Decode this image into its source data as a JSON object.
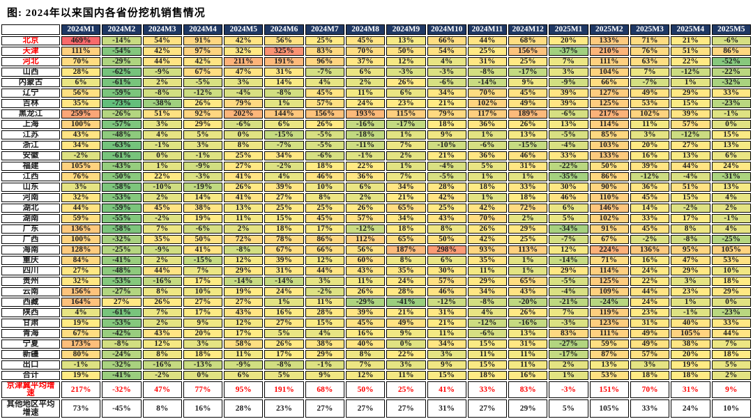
{
  "title": "图: 2024年以来国内各省份挖机销售情况",
  "chart_data": {
    "type": "heatmap",
    "unit": "%",
    "columns": [
      "2024M1",
      "2024M2",
      "2024M3",
      "2024M4",
      "2024M5",
      "2024M6",
      "2024M7",
      "2024M8",
      "2024M9",
      "2024M10",
      "2024M11",
      "2024M12",
      "2025M1",
      "2025M2",
      "2025M3",
      "2025M4",
      "2025M5"
    ],
    "header": {
      "bg": "#1F3864",
      "text": "#FFFFFF"
    },
    "border_color": "#000000",
    "color_scale": {
      "min": -73,
      "mid": 18,
      "max": 469,
      "min_color": "#63BE7B",
      "mid_color": "#FFEB84",
      "max_color": "#F8696B"
    },
    "rows": [
      {
        "label": "北京",
        "label_style": "red",
        "values": [
          469,
          -14,
          54,
          91,
          42,
          56,
          25,
          45,
          13,
          66,
          44,
          68,
          20,
          133,
          71,
          21,
          -6
        ]
      },
      {
        "label": "天津",
        "label_style": "red",
        "values": [
          111,
          -54,
          42,
          97,
          32,
          325,
          83,
          70,
          50,
          54,
          25,
          156,
          -37,
          210,
          76,
          51,
          86
        ]
      },
      {
        "label": "河北",
        "label_style": "red",
        "values": [
          70,
          -29,
          44,
          42,
          211,
          191,
          96,
          37,
          12,
          4,
          31,
          25,
          7,
          111,
          63,
          22,
          -52
        ]
      },
      {
        "label": "山西",
        "values": [
          28,
          -62,
          -9,
          67,
          47,
          31,
          -7,
          6,
          -3,
          -3,
          -8,
          -17,
          3,
          104,
          7,
          -12,
          -22
        ]
      },
      {
        "label": "内蒙古",
        "values": [
          6,
          -61,
          2,
          -5,
          3,
          14,
          4,
          2,
          26,
          -6,
          -14,
          9,
          -9,
          66,
          -7,
          1,
          -32
        ]
      },
      {
        "label": "辽宁",
        "values": [
          56,
          -59,
          -8,
          -12,
          -4,
          -8,
          45,
          11,
          6,
          34,
          70,
          45,
          39,
          127,
          49,
          29,
          33
        ]
      },
      {
        "label": "吉林",
        "values": [
          35,
          -73,
          -38,
          26,
          79,
          1,
          57,
          24,
          23,
          21,
          102,
          49,
          39,
          125,
          53,
          15,
          -23
        ]
      },
      {
        "label": "黑龙江",
        "values": [
          259,
          -26,
          51,
          92,
          202,
          144,
          156,
          193,
          115,
          79,
          117,
          189,
          -6,
          217,
          102,
          39,
          -1
        ]
      },
      {
        "label": "上海",
        "values": [
          100,
          -57,
          3,
          29,
          -6,
          6,
          26,
          -16,
          -17,
          18,
          36,
          26,
          13,
          114,
          11,
          57,
          0
        ]
      },
      {
        "label": "江苏",
        "values": [
          43,
          -48,
          4,
          5,
          0,
          -15,
          -5,
          -18,
          1,
          9,
          1,
          13,
          -5,
          85,
          3,
          -12,
          15
        ]
      },
      {
        "label": "浙江",
        "values": [
          34,
          -63,
          -1,
          3,
          8,
          -7,
          -5,
          -11,
          7,
          -10,
          -6,
          -15,
          -4,
          103,
          20,
          27,
          13
        ]
      },
      {
        "label": "安徽",
        "values": [
          -2,
          -61,
          0,
          -1,
          25,
          34,
          -6,
          -1,
          2,
          21,
          36,
          46,
          33,
          133,
          16,
          13,
          6
        ]
      },
      {
        "label": "福建",
        "values": [
          105,
          -43,
          1,
          -9,
          27,
          -2,
          18,
          22,
          1,
          -4,
          5,
          31,
          -22,
          50,
          39,
          44,
          24
        ]
      },
      {
        "label": "江西",
        "values": [
          76,
          -50,
          22,
          -3,
          41,
          4,
          46,
          36,
          7,
          -5,
          1,
          1,
          -35,
          86,
          -12,
          -4,
          -31
        ]
      },
      {
        "label": "山东",
        "values": [
          3,
          -58,
          -10,
          -19,
          26,
          39,
          10,
          6,
          34,
          28,
          18,
          33,
          30,
          90,
          36,
          51,
          13
        ]
      },
      {
        "label": "河南",
        "values": [
          32,
          -53,
          2,
          14,
          41,
          27,
          8,
          2,
          21,
          42,
          1,
          18,
          46,
          110,
          45,
          15,
          4
        ]
      },
      {
        "label": "湖北",
        "values": [
          44,
          -59,
          45,
          38,
          13,
          25,
          25,
          26,
          65,
          25,
          42,
          72,
          6,
          146,
          14,
          -2,
          2
        ]
      },
      {
        "label": "湖南",
        "values": [
          59,
          -55,
          -2,
          19,
          11,
          15,
          45,
          57,
          34,
          43,
          70,
          2,
          5,
          102,
          33,
          17,
          -1
        ]
      },
      {
        "label": "广东",
        "values": [
          136,
          -58,
          7,
          -6,
          2,
          18,
          17,
          -12,
          18,
          8,
          26,
          29,
          -34,
          91,
          45,
          8,
          4
        ]
      },
      {
        "label": "广西",
        "values": [
          100,
          -32,
          35,
          50,
          72,
          78,
          86,
          112,
          65,
          50,
          42,
          25,
          -7,
          67,
          -2,
          -8,
          -25
        ]
      },
      {
        "label": "海南",
        "values": [
          128,
          -25,
          -9,
          41,
          -8,
          67,
          66,
          56,
          187,
          298,
          93,
          113,
          12,
          224,
          136,
          95,
          105
        ]
      },
      {
        "label": "重庆",
        "values": [
          84,
          -41,
          2,
          -15,
          12,
          39,
          12,
          60,
          8,
          6,
          35,
          1,
          -14,
          71,
          16,
          47,
          53
        ]
      },
      {
        "label": "四川",
        "values": [
          27,
          -48,
          44,
          7,
          29,
          31,
          44,
          43,
          35,
          30,
          11,
          1,
          29,
          114,
          24,
          29,
          10
        ]
      },
      {
        "label": "贵州",
        "values": [
          32,
          -53,
          -16,
          17,
          -14,
          -14,
          3,
          11,
          24,
          57,
          29,
          65,
          -5,
          125,
          22,
          3,
          18
        ]
      },
      {
        "label": "云南",
        "values": [
          156,
          -27,
          8,
          10,
          19,
          24,
          -2,
          26,
          28,
          46,
          34,
          43,
          -4,
          109,
          44,
          23,
          29
        ]
      },
      {
        "label": "西藏",
        "values": [
          164,
          27,
          26,
          27,
          27,
          1,
          11,
          -29,
          -41,
          -12,
          -8,
          -20,
          -21,
          -24,
          24,
          1,
          0
        ]
      },
      {
        "label": "陕西",
        "values": [
          4,
          -61,
          7,
          17,
          43,
          16,
          28,
          39,
          21,
          31,
          4,
          26,
          7,
          119,
          23,
          -1,
          -23
        ]
      },
      {
        "label": "甘肃",
        "values": [
          19,
          -53,
          2,
          9,
          12,
          27,
          15,
          45,
          49,
          21,
          -12,
          -16,
          -3,
          123,
          31,
          40,
          33
        ]
      },
      {
        "label": "青海",
        "values": [
          67,
          -42,
          43,
          20,
          17,
          5,
          4,
          16,
          9,
          11,
          -6,
          13,
          83,
          111,
          49,
          105,
          44
        ]
      },
      {
        "label": "宁夏",
        "values": [
          173,
          -8,
          12,
          3,
          58,
          26,
          38,
          40,
          0,
          34,
          15,
          31,
          -27,
          59,
          49,
          38,
          7
        ]
      },
      {
        "label": "新疆",
        "values": [
          80,
          -24,
          8,
          18,
          11,
          17,
          29,
          8,
          22,
          3,
          11,
          11,
          -17,
          87,
          57,
          20,
          18
        ]
      },
      {
        "label": "出口",
        "values": [
          -1,
          -32,
          -16,
          -13,
          -9,
          -8,
          -1,
          7,
          3,
          9,
          15,
          11,
          2,
          13,
          3,
          19,
          5
        ]
      },
      {
        "label": "合计",
        "values": [
          19,
          -41,
          -2,
          0,
          6,
          5,
          9,
          12,
          11,
          15,
          18,
          16,
          1,
          53,
          18,
          18,
          2
        ]
      },
      {
        "label": "京津冀平均增速",
        "label_style": "red",
        "value_style": "red",
        "fill": false,
        "values": [
          217,
          -32,
          47,
          77,
          95,
          191,
          68,
          50,
          25,
          41,
          33,
          83,
          -3,
          151,
          70,
          31,
          9
        ]
      },
      {
        "label": "其他地区平均增速",
        "fill": false,
        "tall": true,
        "values": [
          73,
          -45,
          8,
          16,
          28,
          23,
          27,
          27,
          27,
          31,
          27,
          29,
          5,
          105,
          33,
          24,
          10
        ]
      }
    ]
  }
}
